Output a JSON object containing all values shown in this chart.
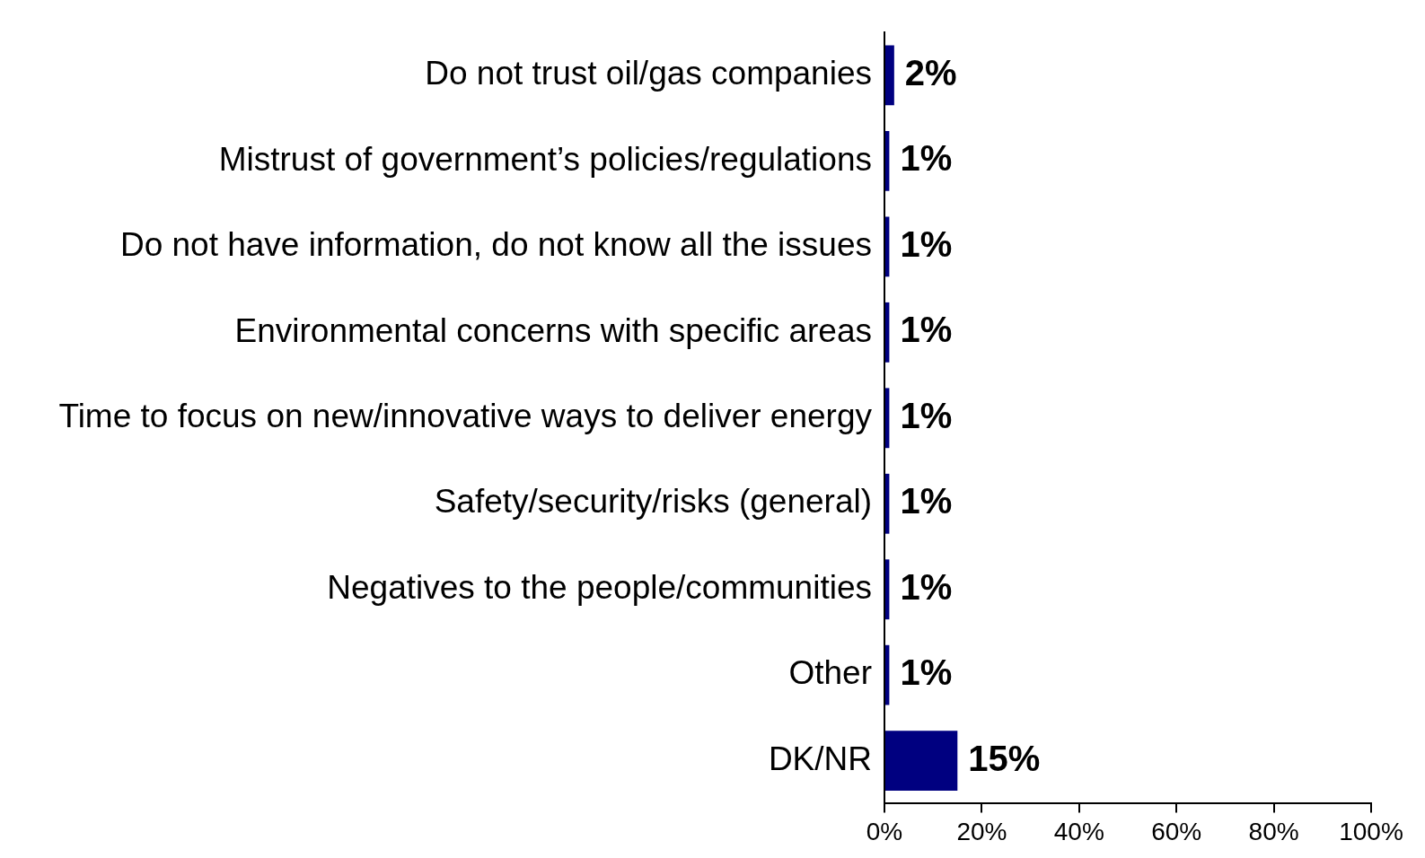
{
  "chart_data": {
    "type": "bar",
    "orientation": "horizontal",
    "categories": [
      "Do not trust oil/gas companies",
      "Mistrust of government’s policies/regulations",
      "Do not have information, do not know all the issues",
      "Environmental concerns with specific areas",
      "Time to focus on new/innovative ways to deliver energy",
      "Safety/security/risks (general)",
      "Negatives to the people/communities",
      "Other",
      "DK/NR"
    ],
    "values": [
      2,
      1,
      1,
      1,
      1,
      1,
      1,
      1,
      15
    ],
    "value_labels": [
      "2%",
      "1%",
      "1%",
      "1%",
      "1%",
      "1%",
      "1%",
      "1%",
      "15%"
    ],
    "color": "#000080",
    "xlim": [
      0,
      100
    ],
    "xticks": [
      {
        "value": 0,
        "label": "0%"
      },
      {
        "value": 20,
        "label": "20%"
      },
      {
        "value": 40,
        "label": "40%"
      },
      {
        "value": 60,
        "label": "60%"
      },
      {
        "value": 80,
        "label": "80%"
      },
      {
        "value": 100,
        "label": "100%"
      }
    ],
    "grid": false,
    "legend": false
  }
}
